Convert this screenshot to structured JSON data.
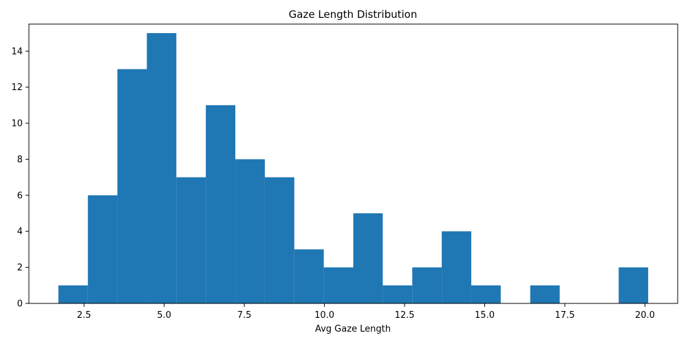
{
  "chart_data": {
    "type": "bar",
    "title": "Gaze Length Distribution",
    "xlabel": "Avg Gaze Length",
    "ylabel": "",
    "bin_edges": [
      1.7,
      2.62,
      3.54,
      4.46,
      5.38,
      6.3,
      7.22,
      8.14,
      9.06,
      9.98,
      10.9,
      11.82,
      12.74,
      13.66,
      14.58,
      15.5,
      16.42,
      17.34,
      18.26,
      19.18,
      20.1
    ],
    "counts": [
      1,
      6,
      13,
      15,
      7,
      11,
      8,
      7,
      3,
      2,
      5,
      1,
      2,
      4,
      1,
      0,
      1,
      0,
      0,
      2
    ],
    "xlim": [
      0.78,
      21.02
    ],
    "ylim": [
      0,
      15.5
    ],
    "xticks": [
      2.5,
      5.0,
      7.5,
      10.0,
      12.5,
      15.0,
      17.5,
      20.0
    ],
    "xtick_labels": [
      "2.5",
      "5.0",
      "7.5",
      "10.0",
      "12.5",
      "15.0",
      "17.5",
      "20.0"
    ],
    "yticks": [
      0,
      2,
      4,
      6,
      8,
      10,
      12,
      14
    ],
    "ytick_labels": [
      "0",
      "2",
      "4",
      "6",
      "8",
      "10",
      "12",
      "14"
    ],
    "bar_color": "#1f77b4",
    "grid": false
  }
}
